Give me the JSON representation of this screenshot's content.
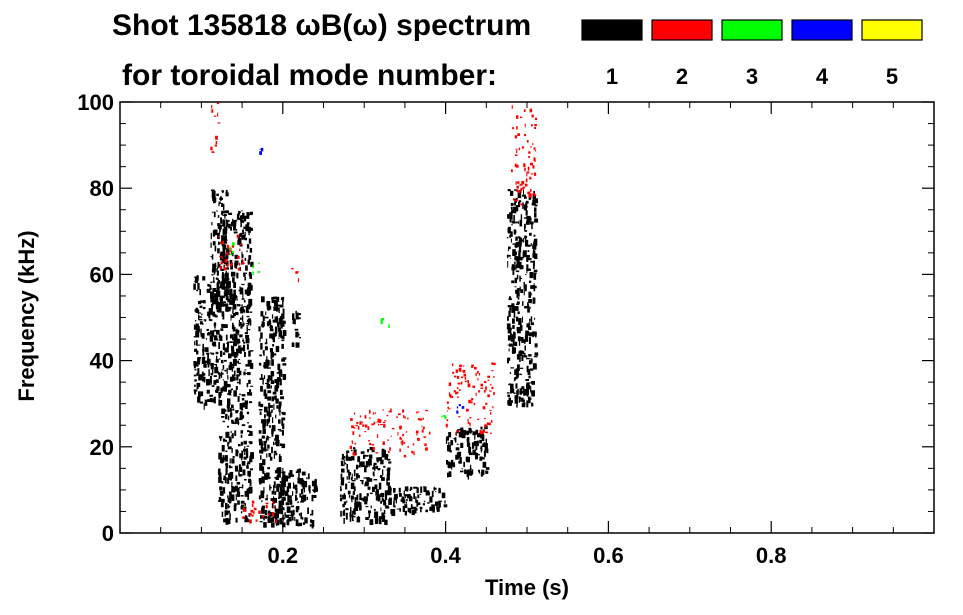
{
  "chart_data": {
    "type": "heatmap",
    "title_line1": "Shot 135818 ωB(ω) spectrum",
    "title_line2": "for toroidal mode number:",
    "xlabel": "Time (s)",
    "ylabel": "Frequency (kHz)",
    "xlim": [
      0.0,
      1.0
    ],
    "ylim": [
      0,
      100
    ],
    "x_ticks": [
      0.2,
      0.4,
      0.6,
      0.8
    ],
    "x_tick_labels": [
      "0.2",
      "0.4",
      "0.6",
      "0.8"
    ],
    "y_ticks": [
      0,
      20,
      40,
      60,
      80,
      100
    ],
    "y_tick_labels": [
      "0",
      "20",
      "40",
      "60",
      "80",
      "100"
    ],
    "grid": false,
    "legend": {
      "placement": "top-right",
      "entries": [
        {
          "label": "1",
          "color": "#000000"
        },
        {
          "label": "2",
          "color": "#ff0000"
        },
        {
          "label": "3",
          "color": "#00ff00"
        },
        {
          "label": "4",
          "color": "#0000ff"
        },
        {
          "label": "5",
          "color": "#ffff00"
        }
      ]
    },
    "series": [
      {
        "mode": "1",
        "color": "#000000",
        "regions": [
          {
            "t": [
              0.09,
              0.12
            ],
            "f": [
              30,
              60
            ]
          },
          {
            "t": [
              0.11,
              0.13
            ],
            "f": [
              50,
              80
            ]
          },
          {
            "t": [
              0.12,
              0.16
            ],
            "f": [
              3,
              75
            ]
          },
          {
            "t": [
              0.17,
              0.2
            ],
            "f": [
              2,
              55
            ]
          },
          {
            "t": [
              0.19,
              0.24
            ],
            "f": [
              2,
              15
            ]
          },
          {
            "t": [
              0.21,
              0.22
            ],
            "f": [
              44,
              52
            ]
          },
          {
            "t": [
              0.27,
              0.33
            ],
            "f": [
              3,
              20
            ]
          },
          {
            "t": [
              0.33,
              0.4
            ],
            "f": [
              5,
              11
            ]
          },
          {
            "t": [
              0.4,
              0.45
            ],
            "f": [
              14,
              25
            ]
          },
          {
            "t": [
              0.475,
              0.51
            ],
            "f": [
              30,
              80
            ]
          }
        ]
      },
      {
        "mode": "2",
        "color": "#ff0000",
        "regions": [
          {
            "t": [
              0.11,
              0.12
            ],
            "f": [
              88,
              100
            ]
          },
          {
            "t": [
              0.12,
              0.15
            ],
            "f": [
              60,
              70
            ]
          },
          {
            "t": [
              0.21,
              0.22
            ],
            "f": [
              58,
              62
            ]
          },
          {
            "t": [
              0.28,
              0.38
            ],
            "f": [
              18,
              29
            ]
          },
          {
            "t": [
              0.4,
              0.46
            ],
            "f": [
              23,
              40
            ]
          },
          {
            "t": [
              0.48,
              0.51
            ],
            "f": [
              75,
              100
            ]
          },
          {
            "t": [
              0.15,
              0.2
            ],
            "f": [
              3,
              8
            ]
          }
        ]
      },
      {
        "mode": "3",
        "color": "#00ff00",
        "regions": [
          {
            "t": [
              0.13,
              0.14
            ],
            "f": [
              63,
              68
            ]
          },
          {
            "t": [
              0.16,
              0.17
            ],
            "f": [
              60,
              64
            ]
          },
          {
            "t": [
              0.32,
              0.33
            ],
            "f": [
              48,
              50
            ]
          },
          {
            "t": [
              0.39,
              0.4
            ],
            "f": [
              27,
              29
            ]
          }
        ]
      },
      {
        "mode": "4",
        "color": "#0000ff",
        "regions": [
          {
            "t": [
              0.17,
              0.175
            ],
            "f": [
              88,
              90
            ]
          },
          {
            "t": [
              0.41,
              0.42
            ],
            "f": [
              28,
              30
            ]
          }
        ]
      }
    ]
  }
}
